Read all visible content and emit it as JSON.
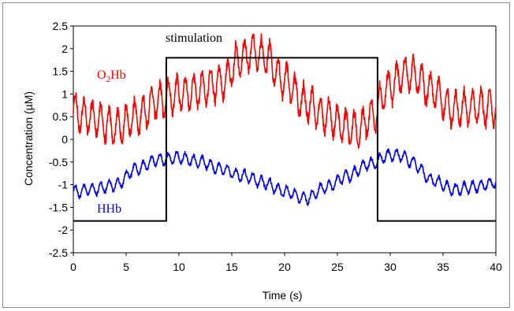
{
  "chart_data": {
    "type": "line",
    "xlabel": "Time (s)",
    "ylabel": "Concentration (µM)",
    "xlim": [
      0,
      40
    ],
    "ylim": [
      -2.5,
      2.5
    ],
    "x_ticks": [
      0,
      5,
      10,
      15,
      20,
      25,
      30,
      35,
      40
    ],
    "y_ticks": [
      2.5,
      2,
      1.5,
      1,
      0.5,
      0,
      -0.5,
      -1,
      -1.5,
      -2,
      -2.5
    ],
    "grid": false,
    "annotations": {
      "stimulation": "stimulation",
      "o2hb_prefix": "O",
      "o2hb_sub": "2",
      "o2hb_suffix": "Hb",
      "hhb": "HHb"
    },
    "series": [
      {
        "name": "O2Hb",
        "color": "#ff0000",
        "oscillation_amplitude": 0.35,
        "oscillation_period_s": 0.8,
        "trend_x": [
          0,
          2,
          4,
          6,
          8,
          10,
          12,
          14,
          16,
          17,
          18,
          20,
          22,
          24,
          26,
          27,
          28,
          30,
          31,
          32,
          34,
          36,
          38,
          40
        ],
        "trend_y": [
          0.6,
          0.45,
          0.25,
          0.5,
          0.85,
          1.0,
          1.1,
          1.25,
          1.8,
          1.95,
          1.85,
          1.3,
          0.8,
          0.5,
          0.25,
          0.2,
          0.45,
          1.15,
          1.4,
          1.45,
          1.05,
          0.65,
          0.7,
          0.7
        ]
      },
      {
        "name": "HHb",
        "color": "#0000ff",
        "oscillation_amplitude": 0.12,
        "oscillation_period_s": 0.8,
        "trend_x": [
          0,
          2,
          4,
          6,
          8,
          10,
          12,
          14,
          16,
          18,
          20,
          22,
          24,
          26,
          28,
          30,
          31,
          32,
          34,
          36,
          38,
          40
        ],
        "trend_y": [
          -1.15,
          -1.1,
          -1.0,
          -0.65,
          -0.45,
          -0.4,
          -0.5,
          -0.65,
          -0.8,
          -0.95,
          -1.15,
          -1.3,
          -1.05,
          -0.8,
          -0.55,
          -0.35,
          -0.35,
          -0.5,
          -0.9,
          -1.1,
          -1.05,
          -0.95
        ]
      },
      {
        "name": "stimulation",
        "color": "#000000",
        "x": [
          0,
          8.8,
          8.8,
          28.8,
          28.8,
          40
        ],
        "y": [
          -1.8,
          -1.8,
          1.8,
          1.8,
          -1.8,
          -1.8
        ]
      }
    ]
  }
}
